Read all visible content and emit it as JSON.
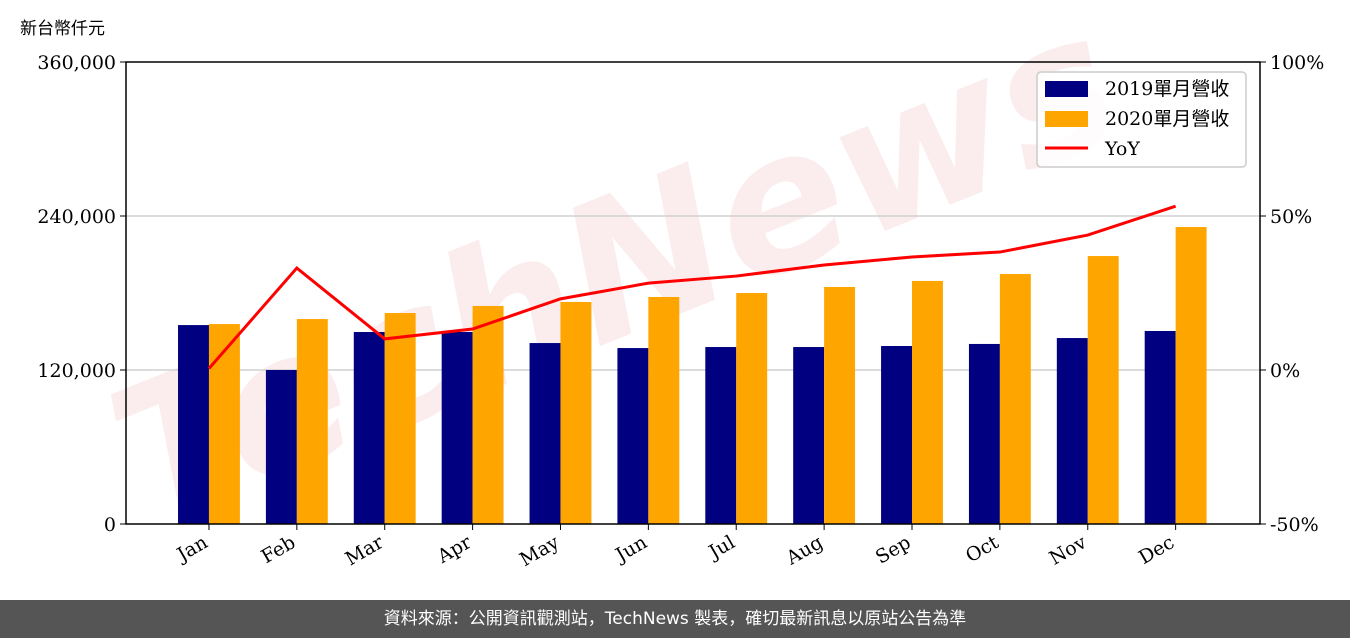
{
  "unit_label": "新台幣仟元",
  "footer": "資料來源：公開資訊觀測站，TechNews 製表，確切最新訊息以原站公告為準",
  "watermark": "TechNews",
  "chart_data": {
    "type": "bar",
    "categories": [
      "Jan",
      "Feb",
      "Mar",
      "Apr",
      "May",
      "Jun",
      "Jul",
      "Aug",
      "Sep",
      "Oct",
      "Nov",
      "Dec"
    ],
    "series": [
      {
        "name": "2019單月營收",
        "type": "bar",
        "axis": "left",
        "color": "#000080",
        "values": [
          155000,
          120000,
          149600,
          149600,
          141000,
          137100,
          137900,
          137900,
          138700,
          140300,
          144900,
          150400
        ]
      },
      {
        "name": "2020單月營收",
        "type": "bar",
        "axis": "left",
        "color": "#FFA500",
        "values": [
          155800,
          159700,
          164400,
          169900,
          173000,
          176900,
          180000,
          184700,
          189400,
          194800,
          208800,
          231400
        ]
      },
      {
        "name": "YoY",
        "type": "line",
        "axis": "right",
        "color": "#FF0000",
        "values": [
          0.5,
          33.1,
          10.1,
          13.3,
          23.1,
          28.2,
          30.5,
          34.1,
          36.7,
          38.3,
          43.8,
          53.2
        ]
      }
    ],
    "left_axis": {
      "range": [
        0,
        360000
      ],
      "ticks": [
        "0",
        "120,000",
        "240,000",
        "360,000"
      ]
    },
    "right_axis": {
      "range": [
        -50,
        100
      ],
      "unit": "%",
      "ticks": [
        "-50%",
        "0%",
        "50%",
        "100%"
      ]
    },
    "grid": "horizontal",
    "legend_position": "top-right"
  }
}
